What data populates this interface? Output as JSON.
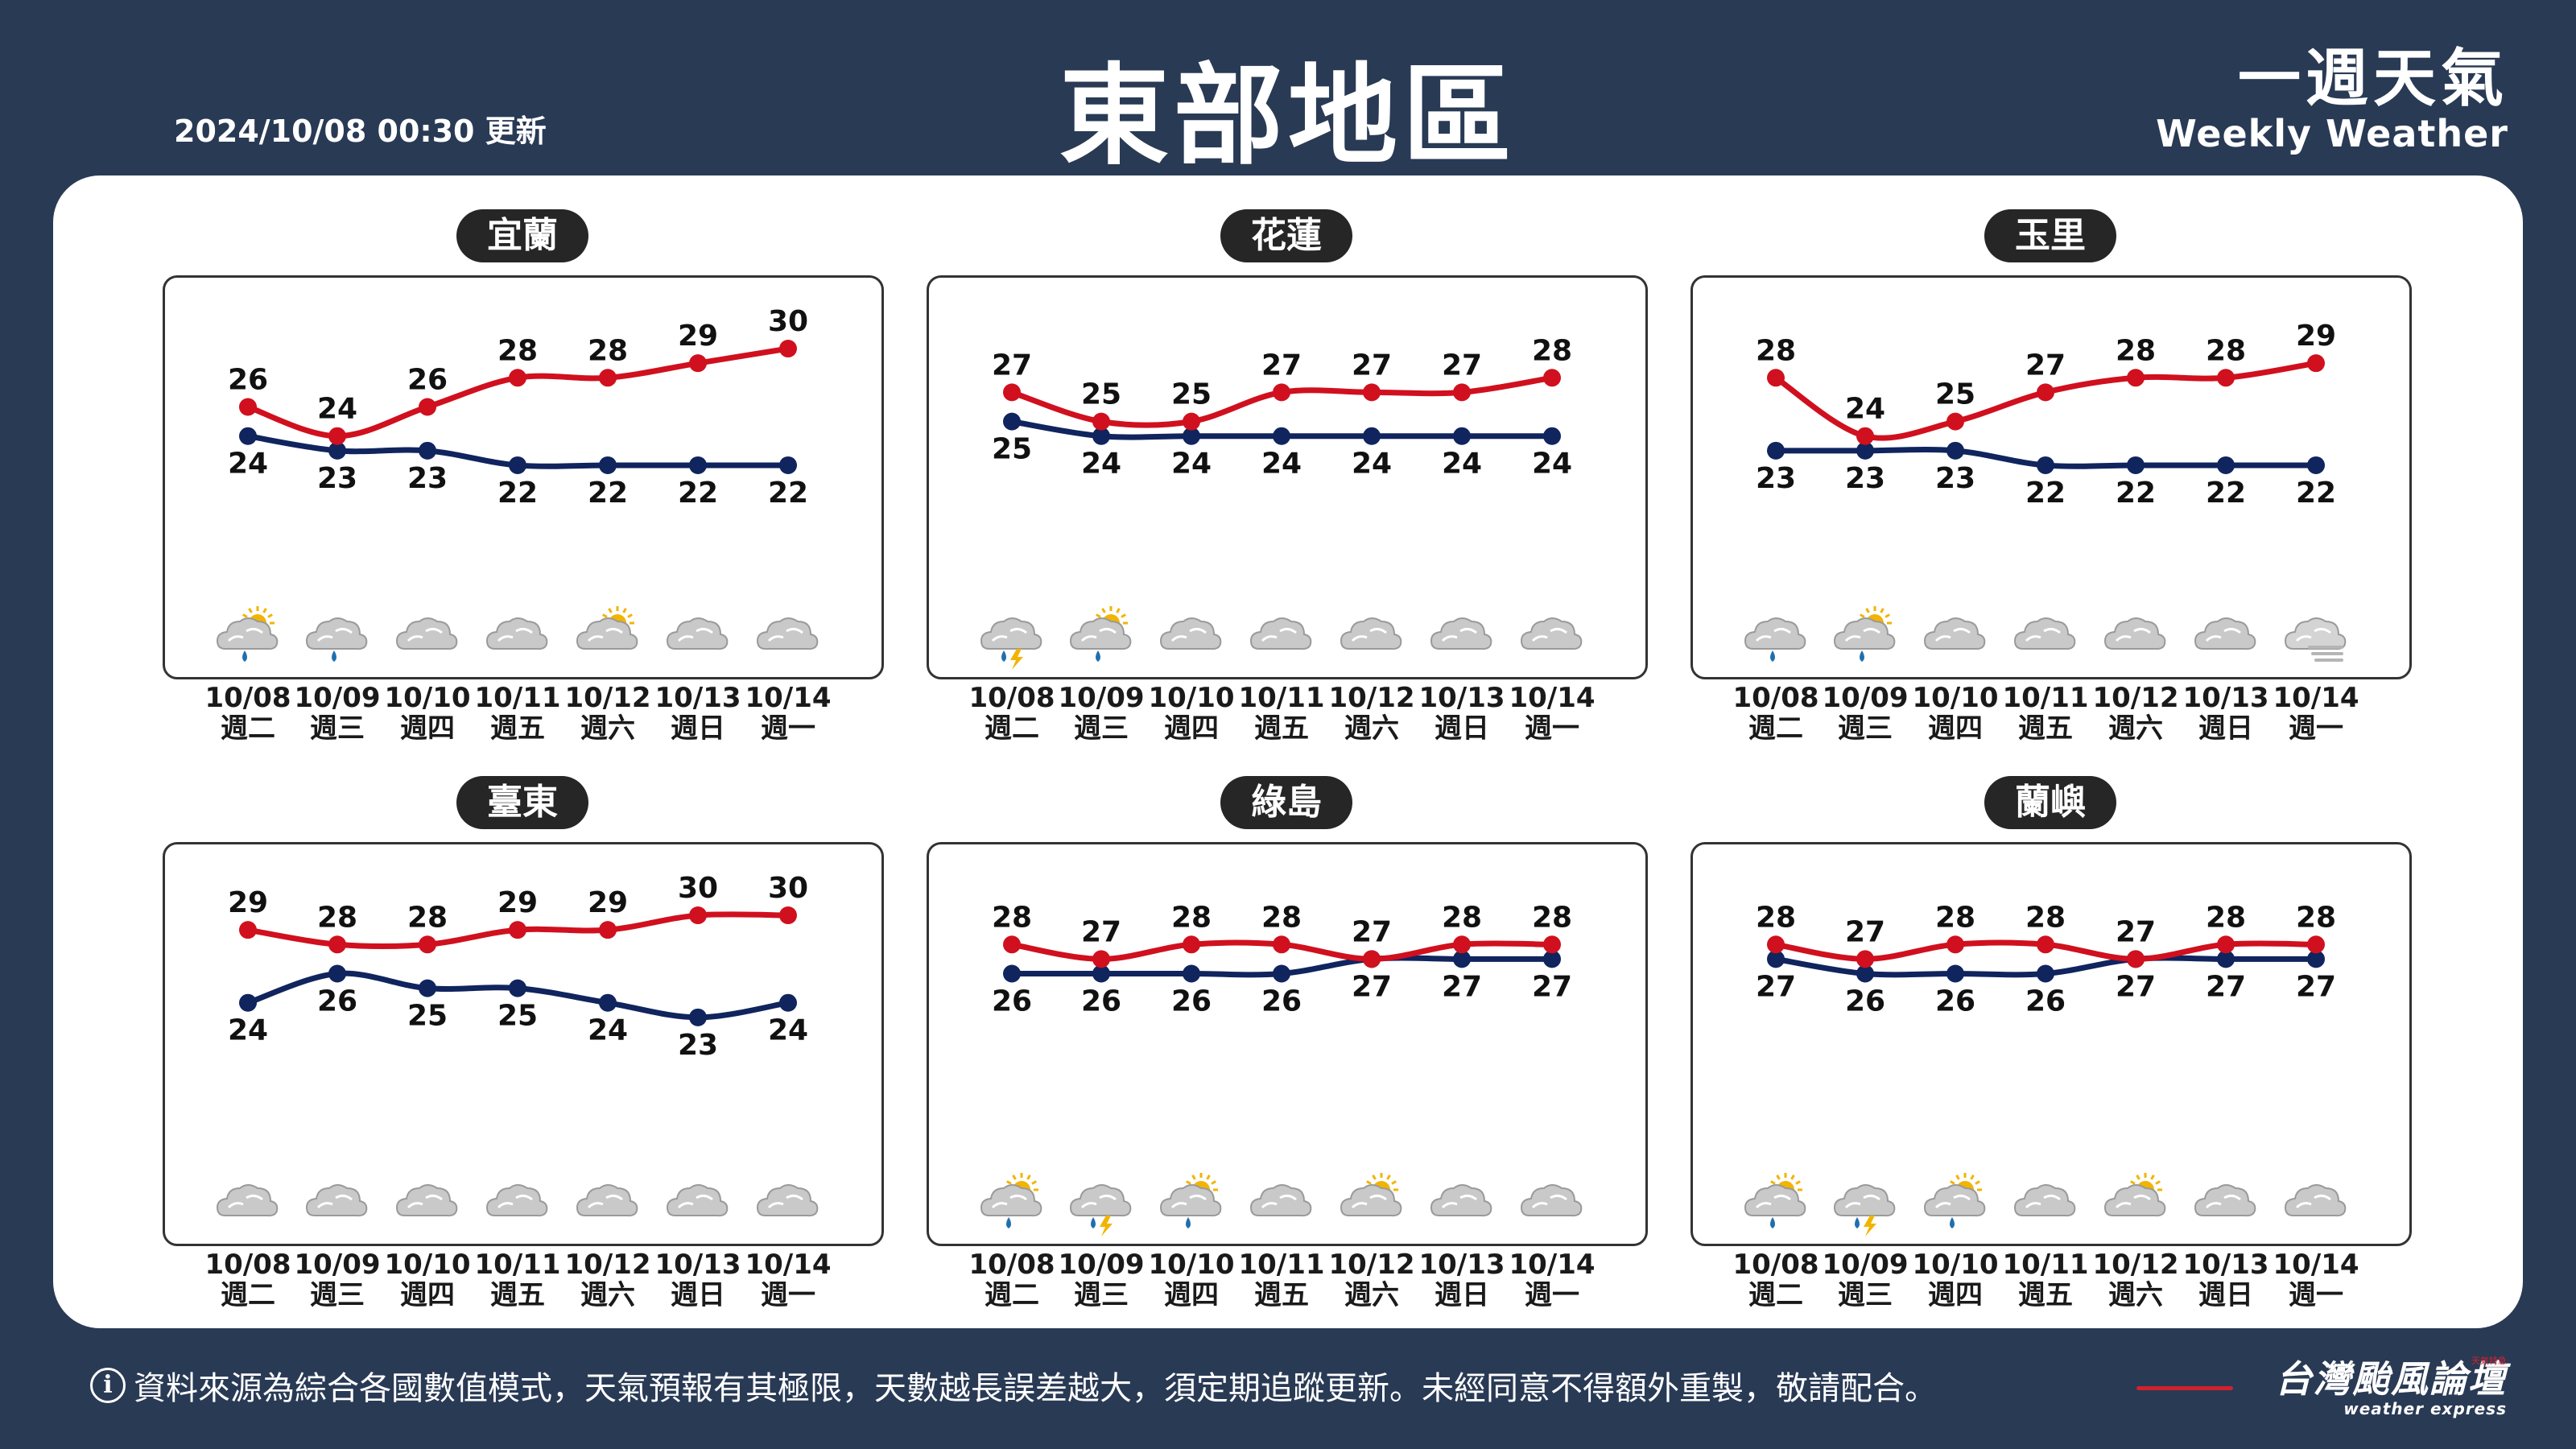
{
  "header": {
    "updated": "2024/10/08 00:30 更新",
    "title": "東部地區",
    "brand_zh": "一週天氣",
    "brand_en": "Weekly Weather"
  },
  "footer": {
    "info_icon": "i",
    "disclaimer": "資料來源為綜合各國數值模式，天氣預報有其極限，天數越長誤差越大，須定期追蹤更新。未經同意不得額外重製，敬請配合。",
    "logo_zh": "台灣颱風論壇",
    "logo_en": "weather express",
    "logo_tag": "天氣特急"
  },
  "colors": {
    "high": "#d0101e",
    "low": "#10245e",
    "background": "#293a55"
  },
  "chart_data": [
    {
      "type": "line",
      "title": "宜蘭",
      "categories": [
        "10/08",
        "10/09",
        "10/10",
        "10/11",
        "10/12",
        "10/13",
        "10/14"
      ],
      "weekdays": [
        "週二",
        "週三",
        "週四",
        "週五",
        "週六",
        "週日",
        "週一"
      ],
      "series": [
        {
          "values": [
            26,
            24,
            26,
            28,
            28,
            29,
            30
          ]
        },
        {
          "values": [
            24,
            23,
            23,
            22,
            22,
            22,
            22
          ]
        }
      ],
      "icons": [
        "partly-sunny-rain-icon",
        "cloud-rain-icon",
        "cloudy-icon",
        "cloudy-icon",
        "partly-sunny-icon",
        "cloudy-icon",
        "cloudy-icon"
      ]
    },
    {
      "type": "line",
      "title": "花蓮",
      "categories": [
        "10/08",
        "10/09",
        "10/10",
        "10/11",
        "10/12",
        "10/13",
        "10/14"
      ],
      "weekdays": [
        "週二",
        "週三",
        "週四",
        "週五",
        "週六",
        "週日",
        "週一"
      ],
      "series": [
        {
          "values": [
            27,
            25,
            25,
            27,
            27,
            27,
            28
          ]
        },
        {
          "values": [
            25,
            24,
            24,
            24,
            24,
            24,
            24
          ]
        }
      ],
      "icons": [
        "cloud-thunder-rain-icon",
        "partly-sunny-rain-icon",
        "cloudy-icon",
        "cloudy-icon",
        "cloudy-icon",
        "cloudy-icon",
        "cloudy-icon"
      ]
    },
    {
      "type": "line",
      "title": "玉里",
      "categories": [
        "10/08",
        "10/09",
        "10/10",
        "10/11",
        "10/12",
        "10/13",
        "10/14"
      ],
      "weekdays": [
        "週二",
        "週三",
        "週四",
        "週五",
        "週六",
        "週日",
        "週一"
      ],
      "series": [
        {
          "values": [
            28,
            24,
            25,
            27,
            28,
            28,
            29
          ]
        },
        {
          "values": [
            23,
            23,
            23,
            22,
            22,
            22,
            22
          ]
        }
      ],
      "icons": [
        "cloud-rain-icon",
        "partly-sunny-rain-icon",
        "cloudy-icon",
        "cloudy-icon",
        "cloudy-icon",
        "cloudy-icon",
        "fog-icon"
      ]
    },
    {
      "type": "line",
      "title": "臺東",
      "categories": [
        "10/08",
        "10/09",
        "10/10",
        "10/11",
        "10/12",
        "10/13",
        "10/14"
      ],
      "weekdays": [
        "週二",
        "週三",
        "週四",
        "週五",
        "週六",
        "週日",
        "週一"
      ],
      "series": [
        {
          "values": [
            29,
            28,
            28,
            29,
            29,
            30,
            30
          ]
        },
        {
          "values": [
            24,
            26,
            25,
            25,
            24,
            23,
            24
          ]
        }
      ],
      "icons": [
        "cloudy-icon",
        "cloudy-icon",
        "cloudy-icon",
        "cloudy-icon",
        "cloudy-icon",
        "cloudy-icon",
        "cloudy-icon"
      ]
    },
    {
      "type": "line",
      "title": "綠島",
      "categories": [
        "10/08",
        "10/09",
        "10/10",
        "10/11",
        "10/12",
        "10/13",
        "10/14"
      ],
      "weekdays": [
        "週二",
        "週三",
        "週四",
        "週五",
        "週六",
        "週日",
        "週一"
      ],
      "series": [
        {
          "values": [
            28,
            27,
            28,
            28,
            27,
            28,
            28
          ]
        },
        {
          "values": [
            26,
            26,
            26,
            26,
            27,
            27,
            27
          ]
        }
      ],
      "icons": [
        "partly-sunny-rain-icon",
        "cloud-thunder-rain-icon",
        "partly-sunny-rain-icon",
        "cloudy-icon",
        "partly-sunny-icon",
        "cloudy-icon",
        "cloudy-icon"
      ]
    },
    {
      "type": "line",
      "title": "蘭嶼",
      "categories": [
        "10/08",
        "10/09",
        "10/10",
        "10/11",
        "10/12",
        "10/13",
        "10/14"
      ],
      "weekdays": [
        "週二",
        "週三",
        "週四",
        "週五",
        "週六",
        "週日",
        "週一"
      ],
      "series": [
        {
          "values": [
            28,
            27,
            28,
            28,
            27,
            28,
            28
          ]
        },
        {
          "values": [
            27,
            26,
            26,
            26,
            27,
            27,
            27
          ]
        }
      ],
      "icons": [
        "partly-sunny-rain-icon",
        "cloud-thunder-rain-icon",
        "partly-sunny-rain-icon",
        "cloudy-icon",
        "partly-sunny-icon",
        "cloudy-icon",
        "cloudy-icon"
      ]
    }
  ]
}
